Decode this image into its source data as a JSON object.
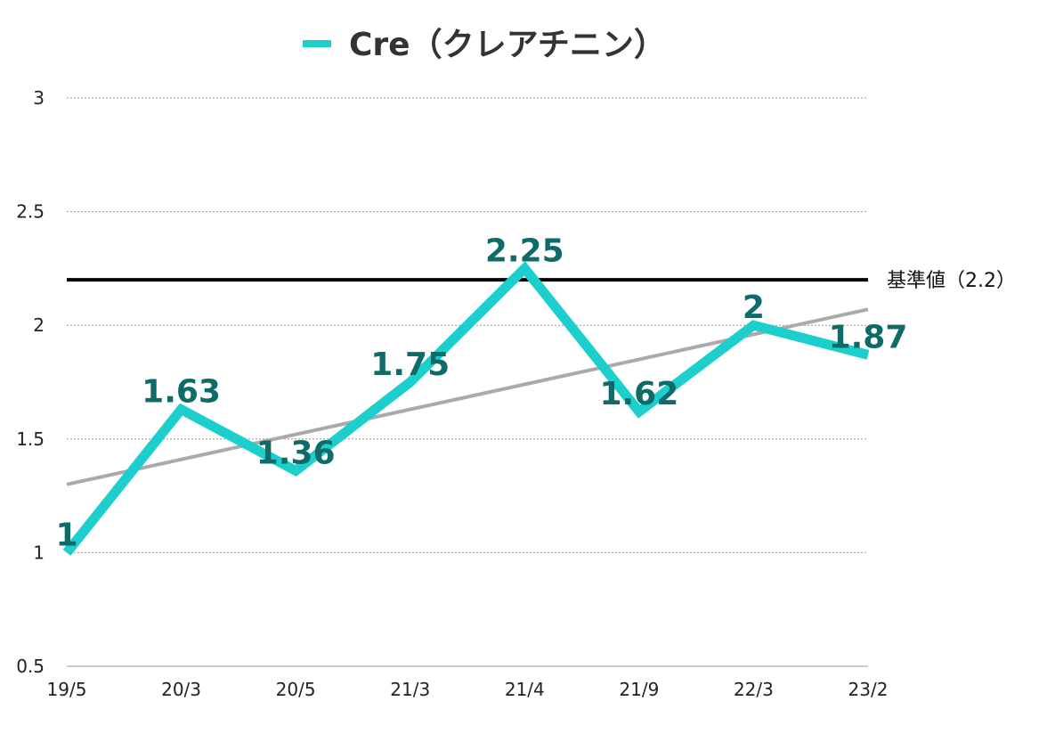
{
  "chart_data": {
    "type": "line",
    "categories": [
      "19/5",
      "20/3",
      "20/5",
      "21/3",
      "21/4",
      "21/9",
      "22/3",
      "23/2"
    ],
    "series": [
      {
        "name": "Cre（クレアチニン）",
        "values": [
          1,
          1.63,
          1.36,
          1.75,
          2.25,
          1.62,
          2,
          1.87
        ],
        "color": "#1ccfcc"
      }
    ],
    "data_labels": [
      "1",
      "1.63",
      "1.36",
      "1.75",
      "2.25",
      "1.62",
      "2",
      "1.87"
    ],
    "y_ticks": [
      "0.5",
      "1",
      "1.5",
      "2",
      "2.5",
      "3"
    ],
    "ylim": [
      0.5,
      3
    ],
    "reference_line": {
      "label": "基準値（2.2）",
      "value": 2.2,
      "color": "#000000"
    },
    "trendline": {
      "start": 1.3,
      "end": 2.07,
      "color": "#aaaaaa"
    },
    "grid": true,
    "legend_position": "top",
    "label_color": "#0f6b68"
  }
}
